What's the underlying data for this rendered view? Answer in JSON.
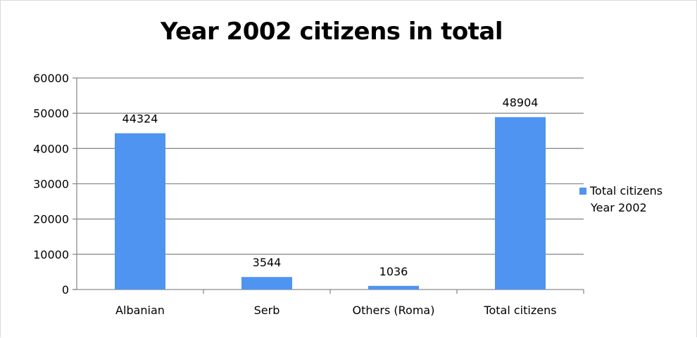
{
  "chart_data": {
    "type": "bar",
    "title": "Year 2002 citizens in total",
    "categories": [
      "Albanian",
      "Serb",
      "Others (Roma)",
      "Total citizens"
    ],
    "series": [
      {
        "name": "Total citizens Year 2002",
        "values": [
          44324,
          3544,
          1036,
          48904
        ],
        "color": "#4f94f0"
      }
    ],
    "data_labels": [
      "44324",
      "3544",
      "1036",
      "48904"
    ],
    "ylim": [
      0,
      60000
    ],
    "yticks": [
      "0",
      "10000",
      "20000",
      "30000",
      "40000",
      "50000",
      "60000"
    ],
    "xlabel": "",
    "ylabel": "",
    "grid": true,
    "legend_position": "right"
  },
  "legend": {
    "line1": "Total citizens",
    "line2": "Year 2002"
  },
  "colors": {
    "bar": "#4f94f0",
    "grid": "#8c8c8c",
    "axis": "#8c8c8c"
  }
}
